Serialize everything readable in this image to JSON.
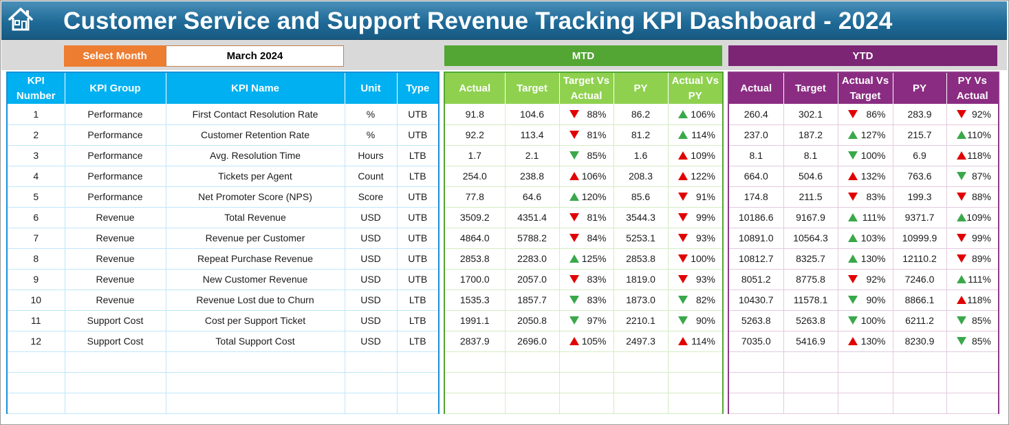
{
  "header": {
    "title": "Customer Service and Support Revenue Tracking KPI Dashboard - 2024",
    "home_icon": "home-icon"
  },
  "controls": {
    "select_label": "Select Month",
    "selected_month": "March 2024",
    "mtd_label": "MTD",
    "ytd_label": "YTD"
  },
  "colors": {
    "title_bar": "#1f6a97",
    "select_label": "#ed7d31",
    "kpi_header": "#00b0f0",
    "mtd_band": "#53a534",
    "mtd_header": "#8fd14f",
    "ytd_band": "#7b2574",
    "ytd_header": "#8a2d82",
    "arrow_good": "#3aa84a",
    "arrow_bad": "#e00000"
  },
  "kpi_headers": [
    "KPI Number",
    "KPI Group",
    "KPI Name",
    "Unit",
    "Type"
  ],
  "mtd_headers": [
    "Actual",
    "Target",
    "Target Vs Actual",
    "PY",
    "Actual Vs PY"
  ],
  "ytd_headers": [
    "Actual",
    "Target",
    "Actual Vs Target",
    "PY",
    "PY Vs Actual"
  ],
  "rows": [
    {
      "num": "1",
      "group": "Performance",
      "name": "First Contact Resolution Rate",
      "unit": "%",
      "type": "UTB",
      "mtd": {
        "actual": "91.8",
        "target": "104.6",
        "tva": "88%",
        "tva_icon": "down-red",
        "py": "86.2",
        "avp": "106%",
        "avp_icon": "up-green"
      },
      "ytd": {
        "actual": "260.4",
        "target": "302.1",
        "avt": "86%",
        "avt_icon": "down-red",
        "py": "283.9",
        "pva": "92%",
        "pva_icon": "down-red"
      }
    },
    {
      "num": "2",
      "group": "Performance",
      "name": "Customer Retention Rate",
      "unit": "%",
      "type": "UTB",
      "mtd": {
        "actual": "92.2",
        "target": "113.4",
        "tva": "81%",
        "tva_icon": "down-red",
        "py": "81.2",
        "avp": "114%",
        "avp_icon": "up-green"
      },
      "ytd": {
        "actual": "237.0",
        "target": "187.2",
        "avt": "127%",
        "avt_icon": "up-green",
        "py": "215.7",
        "pva": "110%",
        "pva_icon": "up-green"
      }
    },
    {
      "num": "3",
      "group": "Performance",
      "name": "Avg. Resolution Time",
      "unit": "Hours",
      "type": "LTB",
      "mtd": {
        "actual": "1.7",
        "target": "2.1",
        "tva": "85%",
        "tva_icon": "down-green",
        "py": "1.6",
        "avp": "109%",
        "avp_icon": "up-red"
      },
      "ytd": {
        "actual": "8.1",
        "target": "8.1",
        "avt": "100%",
        "avt_icon": "down-green",
        "py": "6.9",
        "pva": "118%",
        "pva_icon": "up-red"
      }
    },
    {
      "num": "4",
      "group": "Performance",
      "name": "Tickets per Agent",
      "unit": "Count",
      "type": "LTB",
      "mtd": {
        "actual": "254.0",
        "target": "238.8",
        "tva": "106%",
        "tva_icon": "up-red",
        "py": "208.3",
        "avp": "122%",
        "avp_icon": "up-red"
      },
      "ytd": {
        "actual": "664.0",
        "target": "504.6",
        "avt": "132%",
        "avt_icon": "up-red",
        "py": "763.6",
        "pva": "87%",
        "pva_icon": "down-green"
      }
    },
    {
      "num": "5",
      "group": "Performance",
      "name": "Net Promoter Score (NPS)",
      "unit": "Score",
      "type": "UTB",
      "mtd": {
        "actual": "77.8",
        "target": "64.6",
        "tva": "120%",
        "tva_icon": "up-green",
        "py": "85.6",
        "avp": "91%",
        "avp_icon": "down-red"
      },
      "ytd": {
        "actual": "174.8",
        "target": "211.5",
        "avt": "83%",
        "avt_icon": "down-red",
        "py": "199.3",
        "pva": "88%",
        "pva_icon": "down-red"
      }
    },
    {
      "num": "6",
      "group": "Revenue",
      "name": "Total Revenue",
      "unit": "USD",
      "type": "UTB",
      "mtd": {
        "actual": "3509.2",
        "target": "4351.4",
        "tva": "81%",
        "tva_icon": "down-red",
        "py": "3544.3",
        "avp": "99%",
        "avp_icon": "down-red"
      },
      "ytd": {
        "actual": "10186.6",
        "target": "9167.9",
        "avt": "111%",
        "avt_icon": "up-green",
        "py": "9371.7",
        "pva": "109%",
        "pva_icon": "up-green"
      }
    },
    {
      "num": "7",
      "group": "Revenue",
      "name": "Revenue per Customer",
      "unit": "USD",
      "type": "UTB",
      "mtd": {
        "actual": "4864.0",
        "target": "5788.2",
        "tva": "84%",
        "tva_icon": "down-red",
        "py": "5253.1",
        "avp": "93%",
        "avp_icon": "down-red"
      },
      "ytd": {
        "actual": "10891.0",
        "target": "10564.3",
        "avt": "103%",
        "avt_icon": "up-green",
        "py": "10999.9",
        "pva": "99%",
        "pva_icon": "down-red"
      }
    },
    {
      "num": "8",
      "group": "Revenue",
      "name": "Repeat Purchase Revenue",
      "unit": "USD",
      "type": "UTB",
      "mtd": {
        "actual": "2853.8",
        "target": "2283.0",
        "tva": "125%",
        "tva_icon": "up-green",
        "py": "2853.8",
        "avp": "100%",
        "avp_icon": "down-red"
      },
      "ytd": {
        "actual": "10812.7",
        "target": "8325.7",
        "avt": "130%",
        "avt_icon": "up-green",
        "py": "12110.2",
        "pva": "89%",
        "pva_icon": "down-red"
      }
    },
    {
      "num": "9",
      "group": "Revenue",
      "name": "New Customer Revenue",
      "unit": "USD",
      "type": "UTB",
      "mtd": {
        "actual": "1700.0",
        "target": "2057.0",
        "tva": "83%",
        "tva_icon": "down-red",
        "py": "1819.0",
        "avp": "93%",
        "avp_icon": "down-red"
      },
      "ytd": {
        "actual": "8051.2",
        "target": "8775.8",
        "avt": "92%",
        "avt_icon": "down-red",
        "py": "7246.0",
        "pva": "111%",
        "pva_icon": "up-green"
      }
    },
    {
      "num": "10",
      "group": "Revenue",
      "name": "Revenue Lost due to Churn",
      "unit": "USD",
      "type": "LTB",
      "mtd": {
        "actual": "1535.3",
        "target": "1857.7",
        "tva": "83%",
        "tva_icon": "down-green",
        "py": "1873.0",
        "avp": "82%",
        "avp_icon": "down-green"
      },
      "ytd": {
        "actual": "10430.7",
        "target": "11578.1",
        "avt": "90%",
        "avt_icon": "down-green",
        "py": "8866.1",
        "pva": "118%",
        "pva_icon": "up-red"
      }
    },
    {
      "num": "11",
      "group": "Support Cost",
      "name": "Cost per Support Ticket",
      "unit": "USD",
      "type": "LTB",
      "mtd": {
        "actual": "1991.1",
        "target": "2050.8",
        "tva": "97%",
        "tva_icon": "down-green",
        "py": "2210.1",
        "avp": "90%",
        "avp_icon": "down-green"
      },
      "ytd": {
        "actual": "5263.8",
        "target": "5263.8",
        "avt": "100%",
        "avt_icon": "down-green",
        "py": "6211.2",
        "pva": "85%",
        "pva_icon": "down-green"
      }
    },
    {
      "num": "12",
      "group": "Support Cost",
      "name": "Total Support Cost",
      "unit": "USD",
      "type": "LTB",
      "mtd": {
        "actual": "2837.9",
        "target": "2696.0",
        "tva": "105%",
        "tva_icon": "up-red",
        "py": "2497.3",
        "avp": "114%",
        "avp_icon": "up-red"
      },
      "ytd": {
        "actual": "7035.0",
        "target": "5416.9",
        "avt": "130%",
        "avt_icon": "up-red",
        "py": "8230.9",
        "pva": "85%",
        "pva_icon": "down-green"
      }
    }
  ]
}
